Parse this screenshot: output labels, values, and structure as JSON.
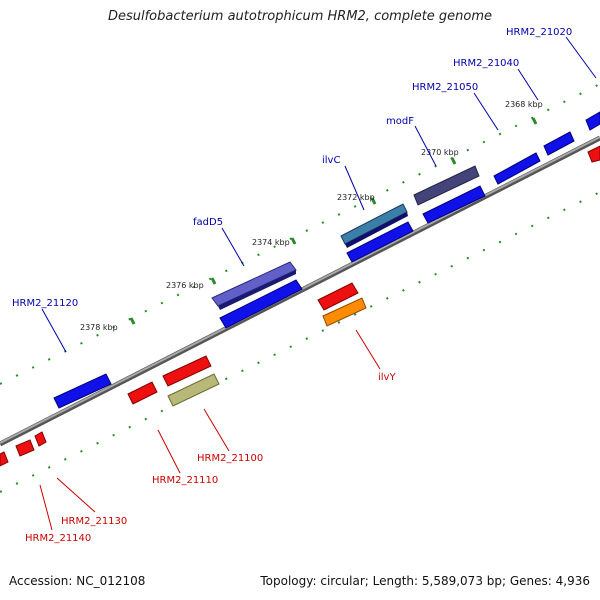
{
  "title": "Desulfobacterium autotrophicum HRM2, complete genome",
  "footer": {
    "accession": "Accession: NC_012108",
    "topology": "Topology: circular; Length: 5,589,073 bp; Genes: 4,936"
  },
  "colors": {
    "forward_label": "#0000aa",
    "reverse_label": "#cc0000",
    "backbone": "#888888",
    "tick": "#2a8a2a",
    "gene_blue": "#1010e8",
    "gene_red": "#ee1010",
    "gene_purple": "#6060c8",
    "gene_slate": "#44447a",
    "gene_teal": "#3b7fa8",
    "gene_orange": "#ff8c00",
    "gene_olive": "#b8b878"
  },
  "tick_labels": [
    "2368 kbp",
    "2370 kbp",
    "2372 kbp",
    "2374 kbp",
    "2376 kbp",
    "2378 kbp"
  ],
  "forward_gene_labels": [
    "HRM2_21020",
    "HRM2_21040",
    "HRM2_21050",
    "modF",
    "ilvC",
    "fadD5",
    "HRM2_21120"
  ],
  "reverse_gene_labels": [
    "ilvY",
    "HRM2_21100",
    "HRM2_21110",
    "HRM2_21130",
    "HRM2_21140"
  ]
}
